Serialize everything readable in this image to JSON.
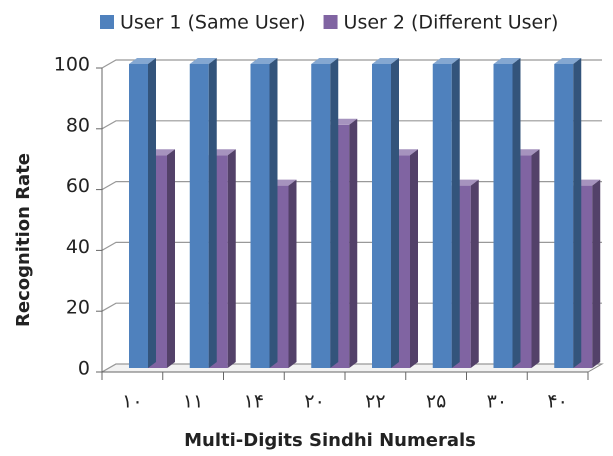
{
  "chart_data": {
    "type": "bar3d",
    "categories": [
      "١٠",
      "١١",
      "١۴",
      "٢٠",
      "٢٢",
      "٢۵",
      "٣٠",
      "۴٠"
    ],
    "series": [
      {
        "name": "User 1 (Same User)",
        "color": "#4f81bd",
        "values": [
          100,
          100,
          100,
          100,
          100,
          100,
          100,
          100
        ]
      },
      {
        "name": "User 2 (Different User)",
        "color": "#8064a2",
        "values": [
          70,
          70,
          60,
          80,
          70,
          60,
          70,
          60
        ]
      }
    ],
    "ylabel": "Recognition Rate",
    "xlabel": "Multi-Digits Sindhi Numerals",
    "ylim": [
      0,
      100
    ],
    "yticks": [
      0,
      20,
      40,
      60,
      80,
      100
    ],
    "grid": true,
    "legend": "top"
  }
}
